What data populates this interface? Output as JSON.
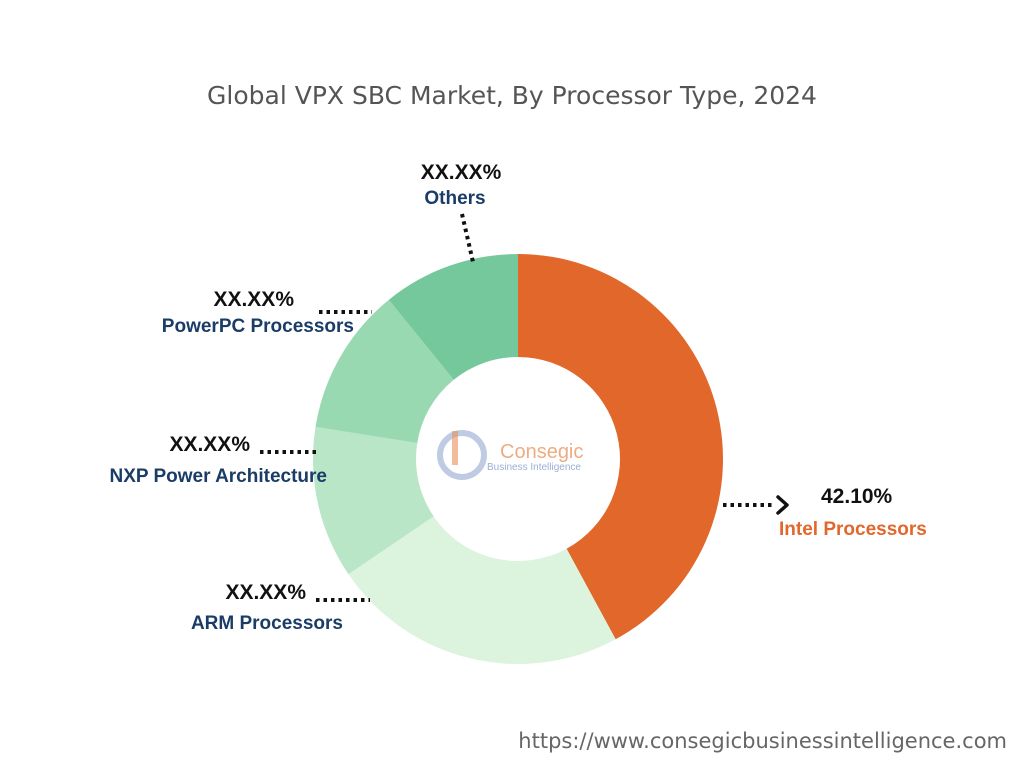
{
  "chart_data": {
    "type": "pie",
    "variant": "donut",
    "title": "Global VPX SBC Market, By Processor Type, 2024",
    "start_angle_deg": 0,
    "slices": [
      {
        "label": "Intel Processors",
        "value_label": "42.10%",
        "value": 42.1,
        "color": "#e2672a",
        "label_color": "#e2672a"
      },
      {
        "label": "ARM Processors",
        "value_label": "XX.XX%",
        "value": 23.4,
        "color": "#dcf3de",
        "label_color": "#1a3c66"
      },
      {
        "label": "NXP Power Architecture",
        "value_label": "XX.XX%",
        "value": 12.0,
        "color": "#b9e6c6",
        "label_color": "#1a3c66"
      },
      {
        "label": "PowerPC Processors",
        "value_label": "XX.XX%",
        "value": 11.65,
        "color": "#98d9b2",
        "label_color": "#1a3c66"
      },
      {
        "label": "Others",
        "value_label": "XX.XX%",
        "value": 10.85,
        "color": "#75c89c",
        "label_color": "#1a3c66"
      }
    ]
  },
  "logo": {
    "name": "Consegic",
    "tagline": "Business Intelligence",
    "colors": {
      "accent": "#e8915a",
      "secondary": "#7a93c2"
    }
  },
  "footer": {
    "url": "https://www.consegicbusinessintelligence.com"
  }
}
